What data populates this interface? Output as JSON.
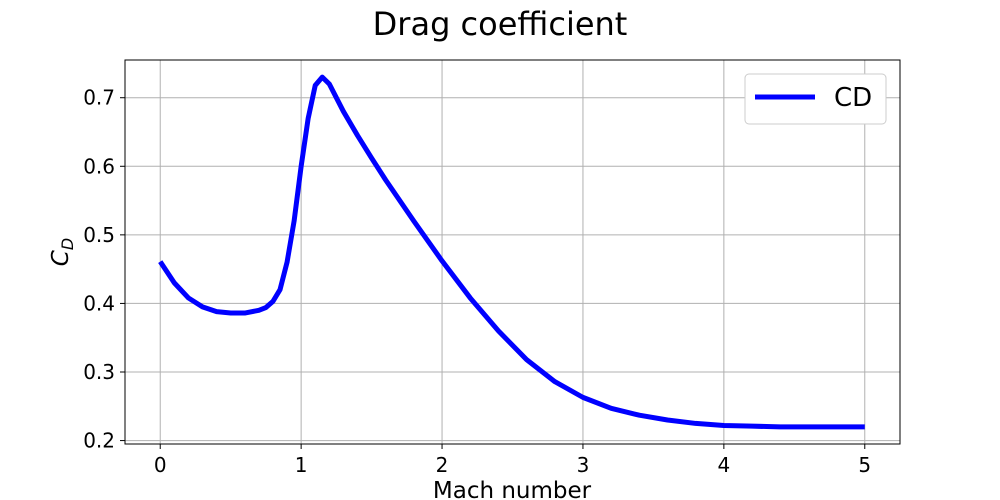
{
  "chart_data": {
    "type": "line",
    "title": "Drag coefficient",
    "xlabel": "Mach number",
    "ylabel_main": "C",
    "ylabel_sub": "D",
    "xlim": [
      -0.25,
      5.25
    ],
    "ylim": [
      0.195,
      0.755
    ],
    "xticks": [
      0,
      1,
      2,
      3,
      4,
      5
    ],
    "xtick_labels": [
      "0",
      "1",
      "2",
      "3",
      "4",
      "5"
    ],
    "yticks": [
      0.2,
      0.3,
      0.4,
      0.5,
      0.6,
      0.7
    ],
    "ytick_labels": [
      "0.2",
      "0.3",
      "0.4",
      "0.5",
      "0.6",
      "0.7"
    ],
    "grid": true,
    "legend_position": "upper right",
    "series": [
      {
        "name": "CD",
        "color": "#0000ff",
        "x": [
          0.0,
          0.1,
          0.2,
          0.3,
          0.4,
          0.5,
          0.6,
          0.7,
          0.75,
          0.8,
          0.85,
          0.9,
          0.95,
          1.0,
          1.05,
          1.1,
          1.15,
          1.2,
          1.3,
          1.4,
          1.5,
          1.6,
          1.8,
          2.0,
          2.2,
          2.4,
          2.6,
          2.8,
          3.0,
          3.2,
          3.4,
          3.6,
          3.8,
          4.0,
          4.2,
          4.4,
          4.6,
          4.8,
          5.0
        ],
        "y": [
          0.461,
          0.43,
          0.408,
          0.395,
          0.388,
          0.386,
          0.386,
          0.39,
          0.394,
          0.403,
          0.42,
          0.46,
          0.52,
          0.6,
          0.67,
          0.718,
          0.73,
          0.72,
          0.68,
          0.645,
          0.612,
          0.58,
          0.52,
          0.462,
          0.408,
          0.36,
          0.318,
          0.286,
          0.263,
          0.247,
          0.237,
          0.23,
          0.225,
          0.222,
          0.221,
          0.22,
          0.22,
          0.22,
          0.22
        ]
      }
    ]
  }
}
